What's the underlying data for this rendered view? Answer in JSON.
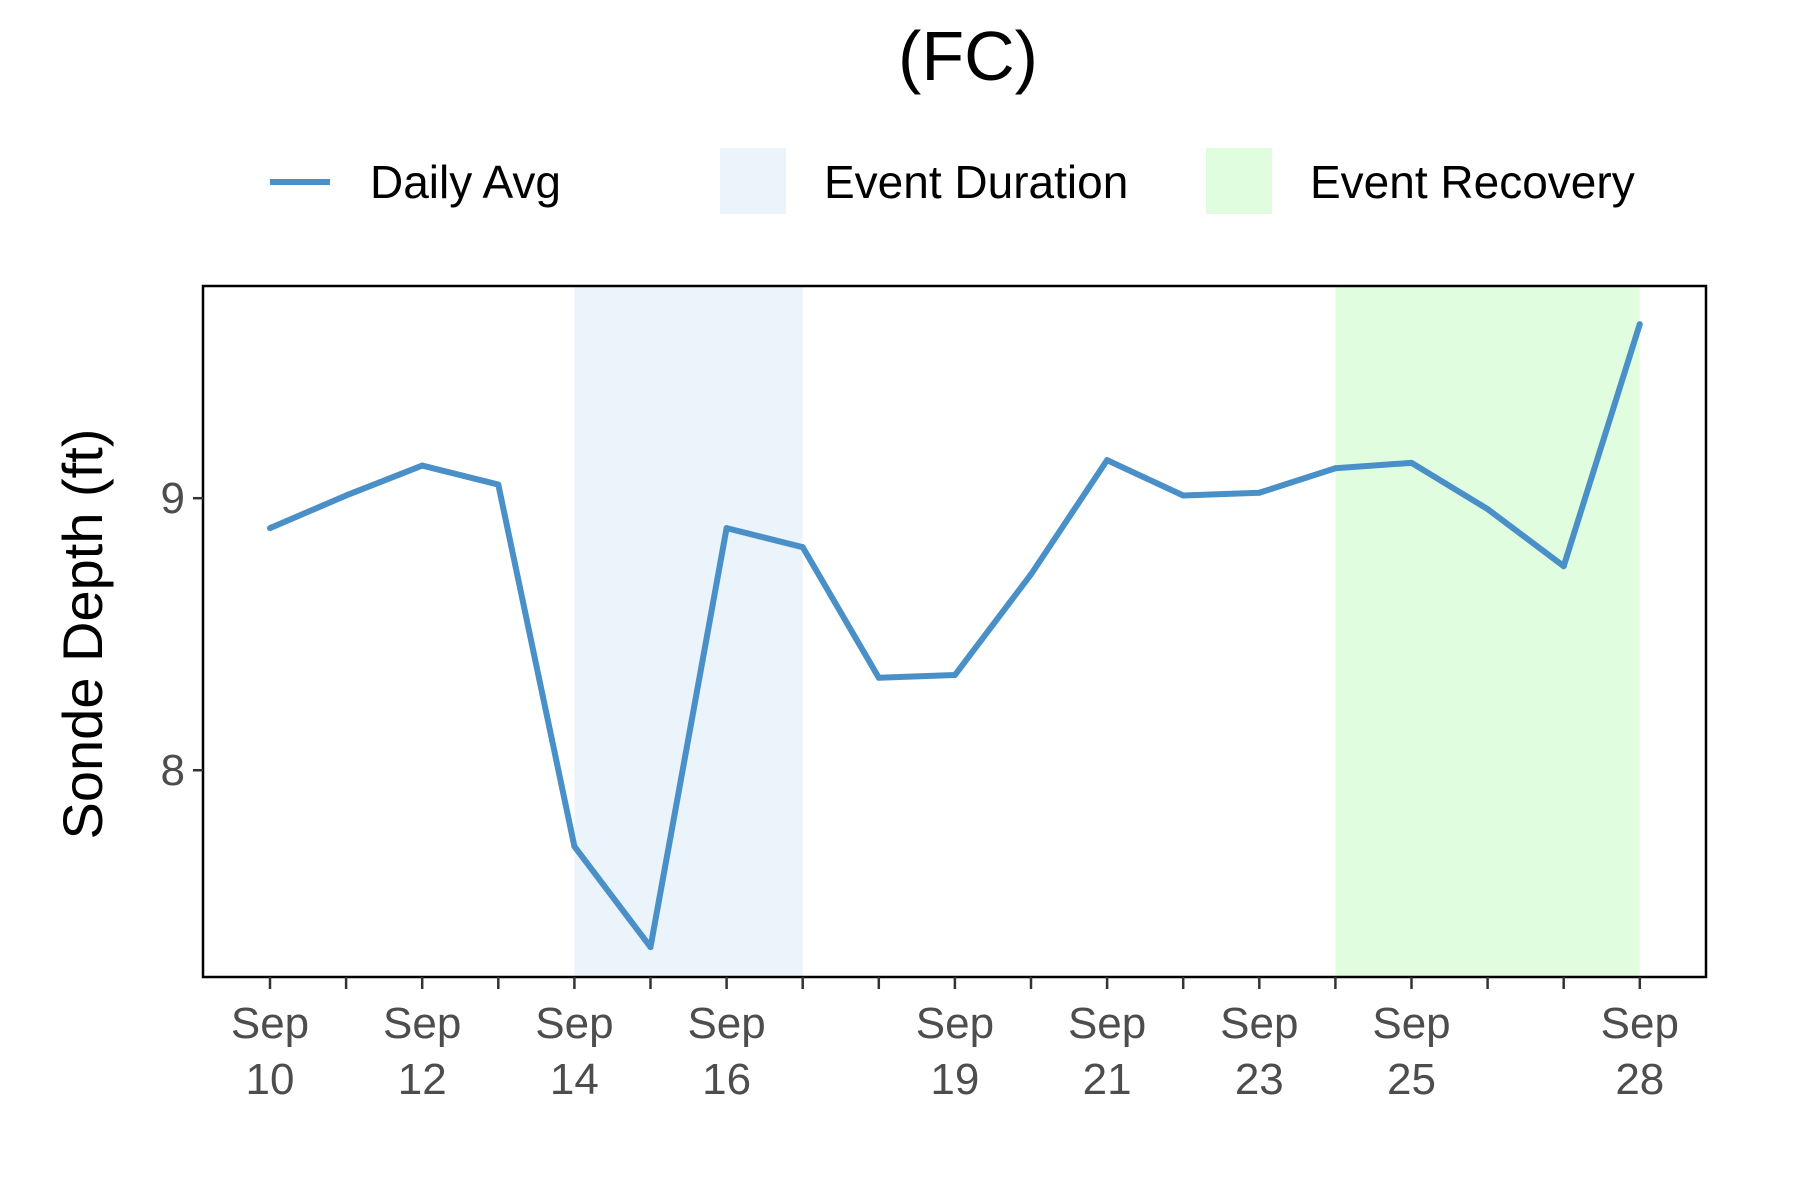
{
  "chart_data": {
    "type": "line",
    "title": "(FC)",
    "xlabel": "",
    "ylabel": "Sonde Depth (ft)",
    "x": [
      "Sep 10",
      "Sep 11",
      "Sep 12",
      "Sep 13",
      "Sep 14",
      "Sep 15",
      "Sep 16",
      "Sep 17",
      "Sep 18",
      "Sep 19",
      "Sep 20",
      "Sep 21",
      "Sep 22",
      "Sep 23",
      "Sep 24",
      "Sep 25",
      "Sep 26",
      "Sep 27",
      "Sep 28"
    ],
    "series": [
      {
        "name": "Daily Avg",
        "color": "#4a90c8",
        "values": [
          8.89,
          9.01,
          9.12,
          9.05,
          7.72,
          7.35,
          8.89,
          8.82,
          8.34,
          8.35,
          8.72,
          9.14,
          9.01,
          9.02,
          9.11,
          9.13,
          8.96,
          8.75,
          9.64
        ]
      }
    ],
    "shaded_regions": [
      {
        "label": "Event Duration",
        "start": "Sep 14",
        "end": "Sep 17",
        "color": "#ebf3fb"
      },
      {
        "label": "Event Recovery",
        "start": "Sep 24",
        "end": "Sep 28",
        "color": "#e1fde0"
      }
    ],
    "ylim": [
      7.24,
      9.78
    ],
    "yticks": [
      8,
      9
    ],
    "xticks": [
      {
        "date": "Sep 10",
        "month": "Sep",
        "day": "10"
      },
      {
        "date": "Sep 12",
        "month": "Sep",
        "day": "12"
      },
      {
        "date": "Sep 14",
        "month": "Sep",
        "day": "14"
      },
      {
        "date": "Sep 16",
        "month": "Sep",
        "day": "16"
      },
      {
        "date": "Sep 19",
        "month": "Sep",
        "day": "19"
      },
      {
        "date": "Sep 21",
        "month": "Sep",
        "day": "21"
      },
      {
        "date": "Sep 23",
        "month": "Sep",
        "day": "23"
      },
      {
        "date": "Sep 25",
        "month": "Sep",
        "day": "25"
      },
      {
        "date": "Sep 28",
        "month": "Sep",
        "day": "28"
      }
    ],
    "legend_placement": "top",
    "legend": [
      {
        "label": "Daily Avg",
        "kind": "line",
        "color": "#4a90c8"
      },
      {
        "label": "Event Duration",
        "kind": "fill",
        "color": "#ebf3fb"
      },
      {
        "label": "Event Recovery",
        "kind": "fill",
        "color": "#e1fde0"
      }
    ],
    "grid": false
  }
}
